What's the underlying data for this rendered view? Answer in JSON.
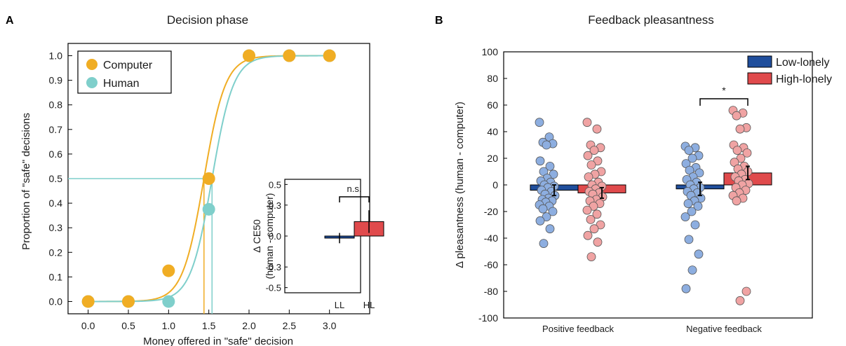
{
  "colors": {
    "computer": "#f0ad24",
    "human": "#7fcfcb",
    "low_lonely": "#1f4e9c",
    "high_lonely": "#e04a4c",
    "low_lonely_dots": "#8daee0",
    "high_lonely_dots": "#f0a3a3"
  },
  "chart_data": [
    {
      "panel": "A",
      "type": "scatter",
      "title": "Decision phase",
      "xlabel": "Money offered in \"safe\" decision",
      "ylabel": "Proportion of \"safe\" decisions",
      "xlim": [
        -0.25,
        3.5
      ],
      "ylim": [
        -0.05,
        1.05
      ],
      "x_ticks": [
        "0.0",
        "0.5",
        "1.0",
        "1.5",
        "2.0",
        "2.5",
        "3.0"
      ],
      "y_ticks": [
        "0.0",
        "0.1",
        "0.2",
        "0.3",
        "0.4",
        "0.5",
        "0.6",
        "0.7",
        "0.8",
        "0.9",
        "1.0"
      ],
      "legend": "top-left",
      "series": [
        {
          "name": "Computer",
          "x": [
            0.0,
            0.5,
            1.0,
            1.5,
            2.0,
            2.5,
            3.0
          ],
          "y": [
            0.0,
            0.0,
            0.125,
            0.5,
            1.0,
            1.0,
            1.0
          ],
          "fit": {
            "midpoint": 1.44,
            "slope": 7.5
          }
        },
        {
          "name": "Human",
          "x": [
            0.0,
            0.5,
            1.0,
            1.5,
            2.0,
            2.5,
            3.0
          ],
          "y": [
            0.0,
            0.0,
            0.0,
            0.375,
            1.0,
            1.0,
            1.0
          ],
          "fit": {
            "midpoint": 1.54,
            "slope": 7.5
          }
        }
      ],
      "reference_line_y": 0.5,
      "inset": {
        "type": "bar",
        "ylabel_line1": "Δ CE50",
        "ylabel_line2": "(human - computer)",
        "ylim": [
          -0.55,
          0.55
        ],
        "y_ticks": [
          "0.5",
          "0.3",
          "0.0",
          "-0.3",
          "-0.5"
        ],
        "categories": [
          "LL",
          "HL"
        ],
        "values": [
          -0.02,
          0.14
        ],
        "errors": [
          0.05,
          0.11
        ],
        "annotation": "n.s."
      }
    },
    {
      "panel": "B",
      "type": "bar",
      "title": "Feedback pleasantness",
      "ylabel": "Δ pleasantness (human - computer)",
      "ylim": [
        -100,
        100
      ],
      "y_ticks": [
        "100",
        "80",
        "60",
        "40",
        "20",
        "0",
        "-20",
        "-40",
        "-60",
        "-80",
        "-100"
      ],
      "categories": [
        "Positive feedback",
        "Negative feedback"
      ],
      "legend": "top-right",
      "annotation": "*",
      "series": [
        {
          "name": "Low-lonely",
          "values": [
            -4,
            -3
          ],
          "errors": [
            4,
            5
          ],
          "points": [
            [
              47,
              36,
              32,
              31,
              30,
              18,
              14,
              10,
              8,
              5,
              3,
              2,
              0,
              -1,
              -2,
              -4,
              -5,
              -7,
              -8,
              -10,
              -11,
              -12,
              -13,
              -15,
              -16,
              -18,
              -20,
              -24,
              -27,
              -33,
              -44
            ],
            [
              29,
              28,
              26,
              22,
              20,
              16,
              13,
              11,
              9,
              6,
              4,
              2,
              0,
              -2,
              -3,
              -5,
              -6,
              -8,
              -10,
              -12,
              -14,
              -16,
              -20,
              -24,
              -30,
              -41,
              -52,
              -64,
              -78
            ]
          ]
        },
        {
          "name": "High-lonely",
          "values": [
            -6,
            9
          ],
          "errors": [
            4,
            5
          ],
          "points": [
            [
              47,
              42,
              30,
              28,
              26,
              22,
              18,
              15,
              10,
              8,
              6,
              2,
              0,
              -1,
              -3,
              -5,
              -6,
              -7,
              -9,
              -11,
              -12,
              -14,
              -16,
              -19,
              -22,
              -26,
              -30,
              -33,
              -38,
              -43,
              -54
            ],
            [
              56,
              54,
              52,
              43,
              42,
              30,
              28,
              26,
              24,
              20,
              17,
              14,
              12,
              10,
              8,
              6,
              4,
              3,
              1,
              0,
              -2,
              -4,
              -6,
              -8,
              -10,
              -12,
              -80,
              -87
            ]
          ]
        }
      ]
    }
  ]
}
